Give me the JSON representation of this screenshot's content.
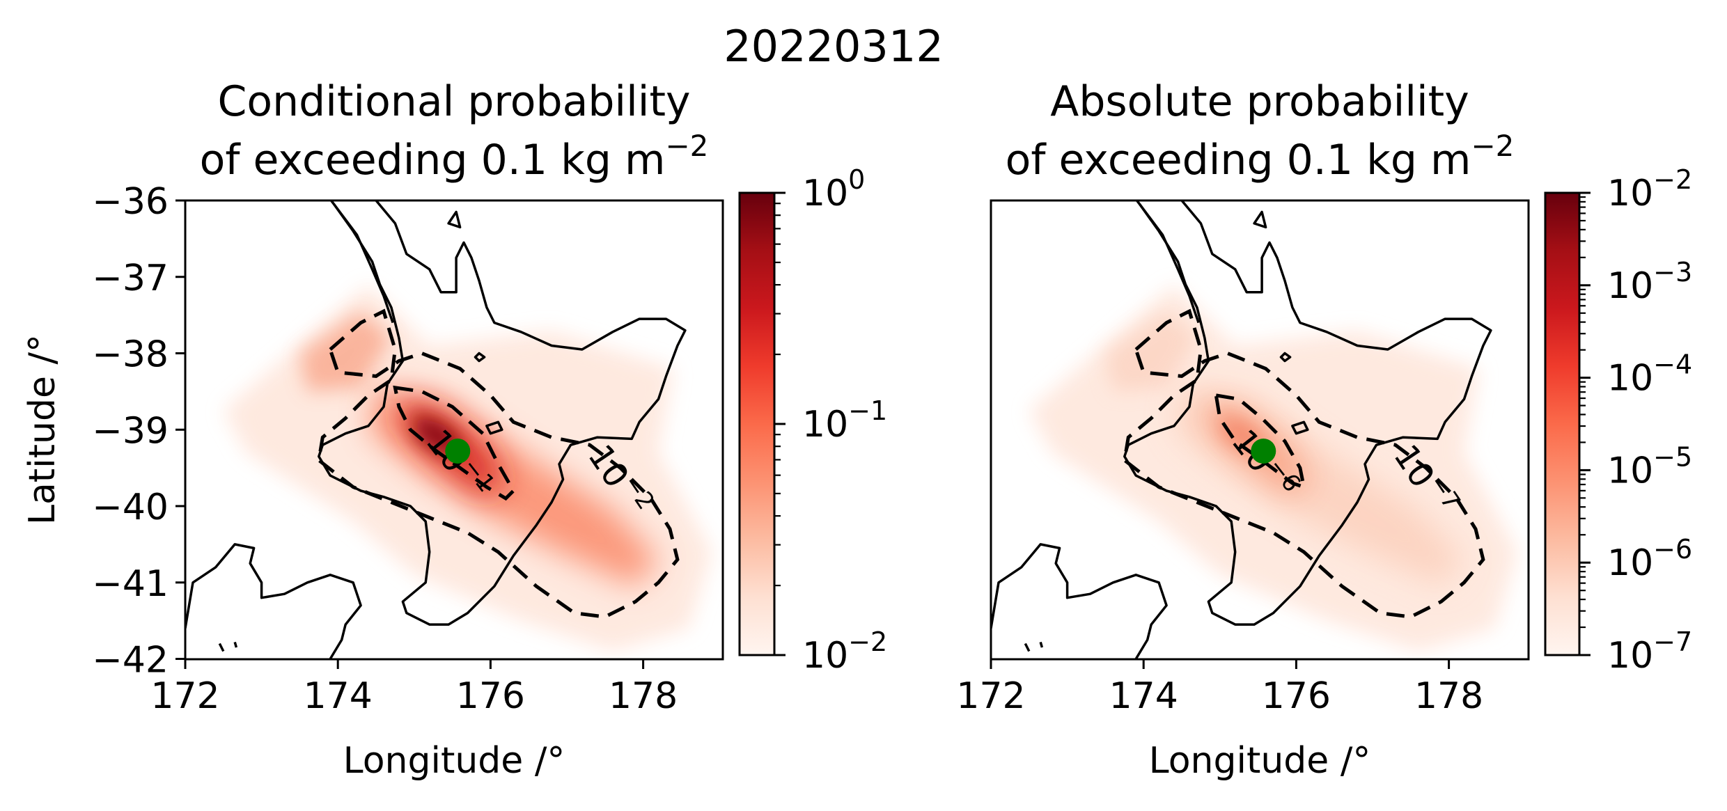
{
  "figure": {
    "suptitle": "20220312"
  },
  "chart_data": [
    {
      "type": "heatmap",
      "panel": "left",
      "title_line1": "Conditional probability",
      "title_line2_prefix": "of exceeding 0.1 kg m",
      "title_line2_exp": "−2",
      "xlabel": "Longitude /°",
      "ylabel": "Latitude /°",
      "xlim": [
        172,
        179.05
      ],
      "ylim": [
        -42,
        -36
      ],
      "xticks": [
        172,
        174,
        176,
        178
      ],
      "xtick_labels": [
        "172",
        "174",
        "176",
        "178"
      ],
      "yticks": [
        -36,
        -37,
        -38,
        -39,
        -40,
        -41,
        -42
      ],
      "ytick_labels": [
        "−36",
        "−37",
        "−38",
        "−39",
        "−40",
        "−41",
        "−42"
      ],
      "colorbar": {
        "scale": "log",
        "range": [
          0.01,
          1
        ],
        "ticks": [
          1,
          0.1,
          0.01
        ],
        "tick_labels": [
          {
            "base": "10",
            "exp": "0"
          },
          {
            "base": "10",
            "exp": "−1"
          },
          {
            "base": "10",
            "exp": "−2"
          }
        ],
        "colormap": "Reds"
      },
      "contours": [
        {
          "level": 0.1,
          "label_base": "10",
          "label_exp": "−1",
          "style": "dashed"
        },
        {
          "level": 0.01,
          "label_base": "10",
          "label_exp": "−2",
          "style": "dashed"
        }
      ],
      "vent": {
        "lon": 175.57,
        "lat": -39.28,
        "color": "#008000"
      },
      "peak_value": 1.0
    },
    {
      "type": "heatmap",
      "panel": "right",
      "title_line1": "Absolute probability",
      "title_line2_prefix": "of exceeding 0.1 kg m",
      "title_line2_exp": "−2",
      "xlabel": "Longitude /°",
      "xlim": [
        172,
        179.05
      ],
      "ylim": [
        -42,
        -36
      ],
      "xticks": [
        172,
        174,
        176,
        178
      ],
      "xtick_labels": [
        "172",
        "174",
        "176",
        "178"
      ],
      "colorbar": {
        "scale": "log",
        "range": [
          1e-07,
          0.01
        ],
        "ticks": [
          0.01,
          0.001,
          0.0001,
          1e-05,
          1e-06,
          1e-07
        ],
        "tick_labels": [
          {
            "base": "10",
            "exp": "−2"
          },
          {
            "base": "10",
            "exp": "−3"
          },
          {
            "base": "10",
            "exp": "−4"
          },
          {
            "base": "10",
            "exp": "−5"
          },
          {
            "base": "10",
            "exp": "−6"
          },
          {
            "base": "10",
            "exp": "−7"
          }
        ],
        "colormap": "Reds"
      },
      "contours": [
        {
          "level": 1e-06,
          "label_base": "10",
          "label_exp": "−6",
          "style": "dashed"
        },
        {
          "level": 1e-07,
          "label_base": "10",
          "label_exp": "−7",
          "style": "dashed"
        }
      ],
      "vent": {
        "lon": 175.57,
        "lat": -39.28,
        "color": "#008000"
      },
      "peak_value": 0.0001
    }
  ],
  "colors": {
    "vent": "#008000",
    "reds_low": "#fff5f0",
    "reds_mid": "#fb6a4a",
    "reds_high": "#67000d",
    "line": "#000000"
  }
}
